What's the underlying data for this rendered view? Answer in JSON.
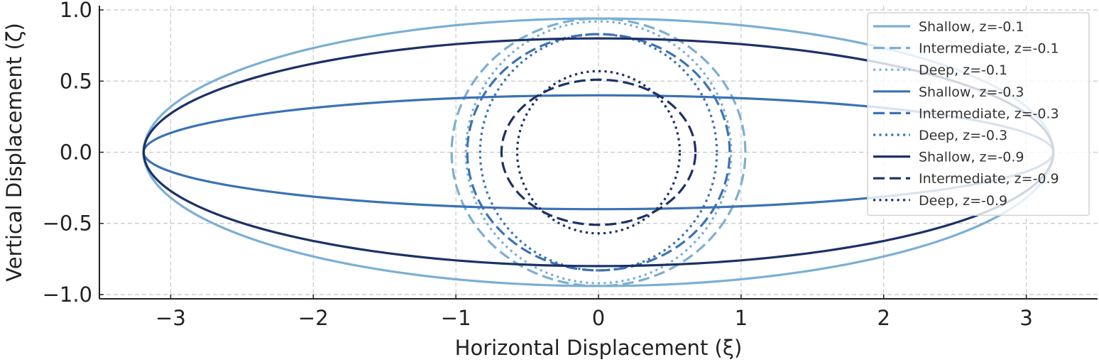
{
  "chart_data": {
    "type": "line",
    "title": "",
    "xlabel": "Horizontal Displacement (ξ)",
    "ylabel": "Vertical Displacement (ζ)",
    "xlim": [
      -3.5,
      3.5
    ],
    "ylim": [
      -1.03,
      1.03
    ],
    "xticks": [
      -3,
      -2,
      -1,
      0,
      1,
      2,
      3
    ],
    "xtick_labels": [
      "−3",
      "−2",
      "−1",
      "0",
      "1",
      "2",
      "3"
    ],
    "yticks": [
      -1.0,
      -0.5,
      0.0,
      0.5,
      1.0
    ],
    "ytick_labels": [
      "−1.0",
      "−0.5",
      "0.0",
      "0.5",
      "1.0"
    ],
    "grid": true,
    "legend_position": "top-right",
    "series": [
      {
        "name": "Shallow, z=-0.1",
        "shape": "ellipse",
        "a": 3.19,
        "b": 0.94,
        "color": "#7bafd4",
        "dash": "solid",
        "center_x": 0,
        "center_y": 0
      },
      {
        "name": "Intermediate, z=-0.1",
        "shape": "ellipse",
        "a": 1.03,
        "b": 0.94,
        "color": "#7bafd4",
        "dash": "dashed",
        "center_x": 0,
        "center_y": 0
      },
      {
        "name": "Deep, z=-0.1",
        "shape": "ellipse",
        "a": 0.93,
        "b": 0.92,
        "color": "#7bafd4",
        "dash": "dotted",
        "center_x": 0,
        "center_y": 0
      },
      {
        "name": "Shallow, z=-0.3",
        "shape": "ellipse",
        "a": 3.19,
        "b": 0.4,
        "color": "#3b72b5",
        "dash": "solid",
        "center_x": 0,
        "center_y": 0
      },
      {
        "name": "Intermediate, z=-0.3",
        "shape": "ellipse",
        "a": 0.92,
        "b": 0.83,
        "color": "#3b72b5",
        "dash": "dashed",
        "center_x": 0,
        "center_y": 0
      },
      {
        "name": "Deep, z=-0.3",
        "shape": "ellipse",
        "a": 0.83,
        "b": 0.83,
        "color": "#3b72b5",
        "dash": "dotted",
        "center_x": 0,
        "center_y": 0
      },
      {
        "name": "Shallow, z=-0.9",
        "shape": "ellipse",
        "a": 3.19,
        "b": 0.8,
        "color": "#1c3166",
        "dash": "solid",
        "center_x": 0,
        "center_y": 0
      },
      {
        "name": "Intermediate, z=-0.9",
        "shape": "ellipse",
        "a": 0.68,
        "b": 0.51,
        "color": "#1c3166",
        "dash": "dashed",
        "center_x": 0,
        "center_y": 0
      },
      {
        "name": "Deep, z=-0.9",
        "shape": "ellipse",
        "a": 0.57,
        "b": 0.57,
        "color": "#1c3166",
        "dash": "dotted",
        "center_x": 0,
        "center_y": 0
      }
    ]
  }
}
